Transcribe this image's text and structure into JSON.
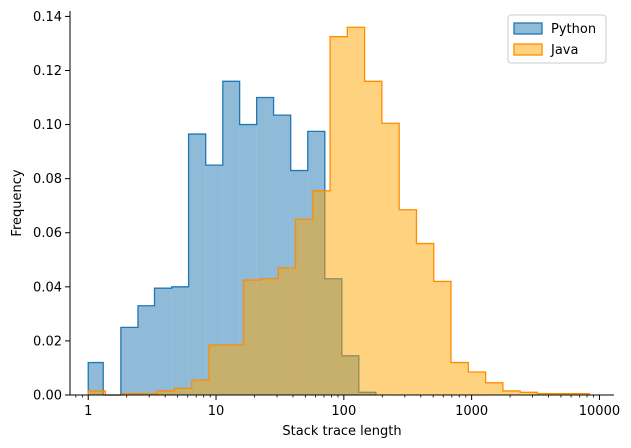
{
  "chart_data": {
    "type": "histogram",
    "xlabel": "Stack trace length",
    "ylabel": "Frequency",
    "xscale": "log",
    "xlim": [
      0.72,
      13000
    ],
    "ylim": [
      0,
      0.142
    ],
    "x_ticks": [
      1,
      10,
      100,
      1000,
      10000
    ],
    "x_tick_labels": [
      "1",
      "10",
      "100",
      "1000",
      "10000"
    ],
    "y_ticks": [
      0.0,
      0.02,
      0.04,
      0.06,
      0.08,
      0.1,
      0.12,
      0.14
    ],
    "y_tick_labels": [
      "0.00",
      "0.02",
      "0.04",
      "0.06",
      "0.08",
      "0.10",
      "0.12",
      "0.14"
    ],
    "legend_position": "top-right",
    "series": [
      {
        "name": "Python",
        "edge_color": "#1f77b4",
        "fill_color": "#1f77b4",
        "fill_opacity": 0.5,
        "bins": [
          {
            "x0": 1.0,
            "x1": 1.31,
            "y": 0.012
          },
          {
            "x0": 1.31,
            "x1": 1.8,
            "y": 0.0
          },
          {
            "x0": 1.8,
            "x1": 2.45,
            "y": 0.025
          },
          {
            "x0": 2.45,
            "x1": 3.3,
            "y": 0.033
          },
          {
            "x0": 3.3,
            "x1": 4.5,
            "y": 0.0395
          },
          {
            "x0": 4.5,
            "x1": 6.1,
            "y": 0.04
          },
          {
            "x0": 6.1,
            "x1": 8.3,
            "y": 0.0965
          },
          {
            "x0": 8.3,
            "x1": 11.3,
            "y": 0.085
          },
          {
            "x0": 11.3,
            "x1": 15.3,
            "y": 0.116
          },
          {
            "x0": 15.3,
            "x1": 20.8,
            "y": 0.1
          },
          {
            "x0": 20.8,
            "x1": 28.2,
            "y": 0.11
          },
          {
            "x0": 28.2,
            "x1": 38.4,
            "y": 0.1035
          },
          {
            "x0": 38.4,
            "x1": 52.2,
            "y": 0.083
          },
          {
            "x0": 52.2,
            "x1": 71.0,
            "y": 0.0975
          },
          {
            "x0": 71.0,
            "x1": 96.5,
            "y": 0.043
          },
          {
            "x0": 96.5,
            "x1": 131.0,
            "y": 0.0145
          },
          {
            "x0": 131.0,
            "x1": 178.0,
            "y": 0.001
          }
        ]
      },
      {
        "name": "Java",
        "edge_color": "#ff8c00",
        "fill_color": "#ffa500",
        "fill_opacity": 0.5,
        "bins": [
          {
            "x0": 1.0,
            "x1": 1.36,
            "y": 0.0015
          },
          {
            "x0": 1.36,
            "x1": 1.86,
            "y": 0.0
          },
          {
            "x0": 1.86,
            "x1": 2.54,
            "y": 0.0005
          },
          {
            "x0": 2.54,
            "x1": 3.47,
            "y": 0.0005
          },
          {
            "x0": 3.47,
            "x1": 4.73,
            "y": 0.0015
          },
          {
            "x0": 4.73,
            "x1": 6.46,
            "y": 0.0025
          },
          {
            "x0": 6.46,
            "x1": 8.82,
            "y": 0.0055
          },
          {
            "x0": 8.82,
            "x1": 12.05,
            "y": 0.0185
          },
          {
            "x0": 12.05,
            "x1": 16.45,
            "y": 0.0185
          },
          {
            "x0": 16.45,
            "x1": 22.46,
            "y": 0.0425
          },
          {
            "x0": 22.46,
            "x1": 30.66,
            "y": 0.043
          },
          {
            "x0": 30.66,
            "x1": 41.86,
            "y": 0.047
          },
          {
            "x0": 41.86,
            "x1": 57.15,
            "y": 0.065
          },
          {
            "x0": 57.15,
            "x1": 78.03,
            "y": 0.0755
          },
          {
            "x0": 78.03,
            "x1": 106.5,
            "y": 0.1325
          },
          {
            "x0": 106.5,
            "x1": 145.4,
            "y": 0.136
          },
          {
            "x0": 145.4,
            "x1": 198.5,
            "y": 0.116
          },
          {
            "x0": 198.5,
            "x1": 271.0,
            "y": 0.1005
          },
          {
            "x0": 271.0,
            "x1": 370.0,
            "y": 0.0685
          },
          {
            "x0": 370.0,
            "x1": 505.2,
            "y": 0.056
          },
          {
            "x0": 505.2,
            "x1": 689.8,
            "y": 0.042
          },
          {
            "x0": 689.8,
            "x1": 941.8,
            "y": 0.012
          },
          {
            "x0": 941.8,
            "x1": 1285.9,
            "y": 0.0085
          },
          {
            "x0": 1285.9,
            "x1": 1755.7,
            "y": 0.0045
          },
          {
            "x0": 1755.7,
            "x1": 2397.2,
            "y": 0.0015
          },
          {
            "x0": 2397.2,
            "x1": 3273.0,
            "y": 0.001
          },
          {
            "x0": 3273.0,
            "x1": 4468.8,
            "y": 0.0005
          },
          {
            "x0": 4468.8,
            "x1": 6101.5,
            "y": 0.0005
          },
          {
            "x0": 6101.5,
            "x1": 8330.9,
            "y": 0.0005
          }
        ]
      }
    ]
  }
}
